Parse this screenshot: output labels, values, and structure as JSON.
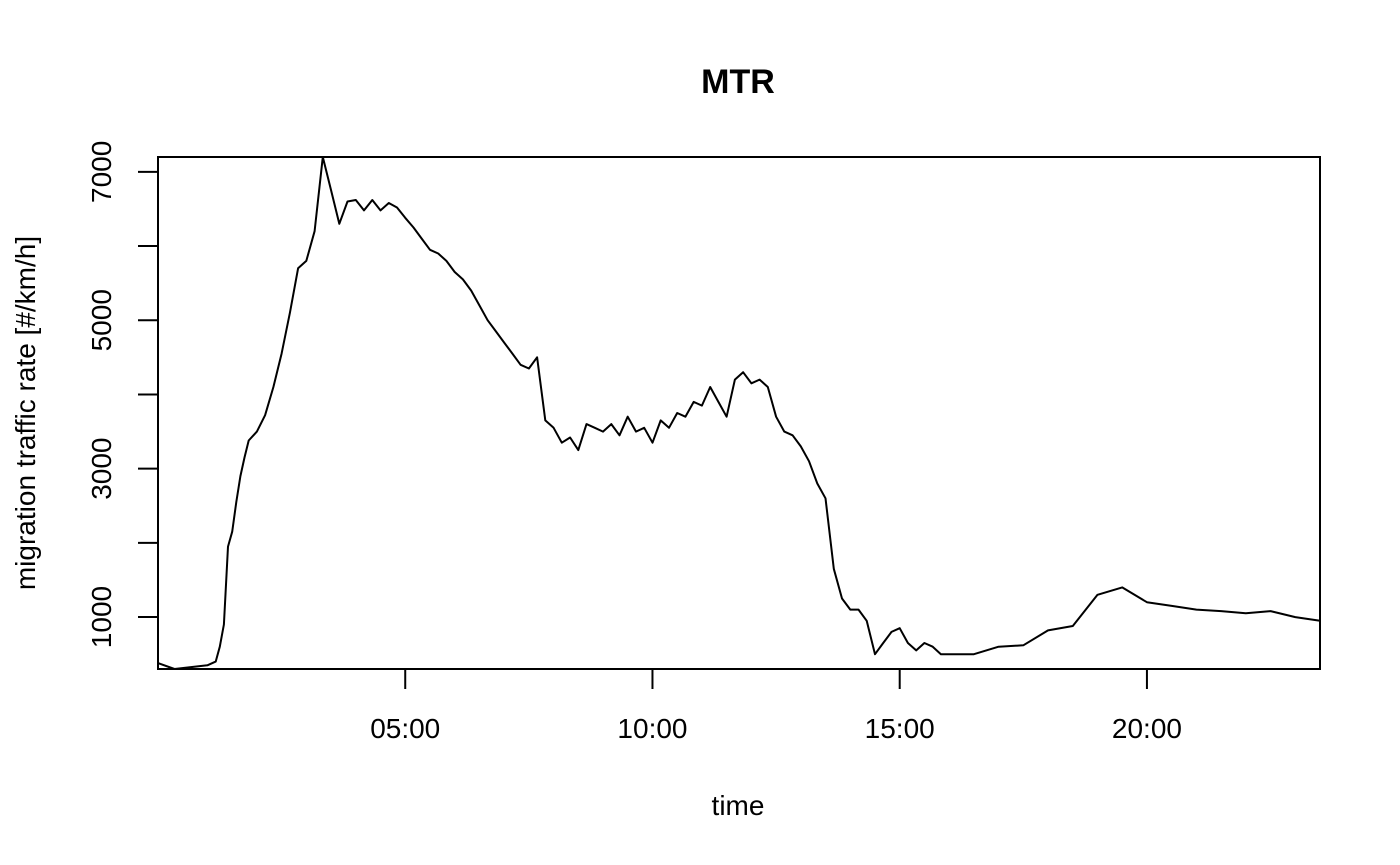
{
  "chart_data": {
    "type": "line",
    "title": "MTR",
    "xlabel": "time",
    "ylabel": "migration traffic rate [#/km/h]",
    "xlim": [
      "00:00",
      "23:30"
    ],
    "ylim": [
      300,
      7200
    ],
    "x_ticks": [
      "05:00",
      "10:00",
      "15:00",
      "20:00"
    ],
    "y_ticks": [
      1000,
      3000,
      5000,
      7000
    ],
    "y_tick_labels": [
      "1000",
      "3000",
      "5000",
      "7000"
    ],
    "y_minor_ticks": [
      2000,
      4000,
      6000
    ],
    "grid": false,
    "line_color": "#000000",
    "series": [
      {
        "x": [
          "00:00",
          "00:20",
          "01:00",
          "01:10",
          "01:15",
          "01:20",
          "01:25",
          "01:30",
          "01:35",
          "01:40",
          "01:45",
          "01:50",
          "02:00",
          "02:10",
          "02:20",
          "02:30",
          "02:40",
          "02:50",
          "03:00",
          "03:10",
          "03:20",
          "03:30",
          "03:40",
          "03:50",
          "04:00",
          "04:10",
          "04:20",
          "04:30",
          "04:40",
          "04:50",
          "05:00",
          "05:10",
          "05:20",
          "05:30",
          "05:40",
          "05:50",
          "06:00",
          "06:10",
          "06:20",
          "06:30",
          "06:40",
          "06:50",
          "07:00",
          "07:10",
          "07:20",
          "07:30",
          "07:40",
          "07:50",
          "08:00",
          "08:10",
          "08:20",
          "08:30",
          "08:40",
          "08:50",
          "09:00",
          "09:10",
          "09:20",
          "09:30",
          "09:40",
          "09:50",
          "10:00",
          "10:10",
          "10:20",
          "10:30",
          "10:40",
          "10:50",
          "11:00",
          "11:10",
          "11:20",
          "11:30",
          "11:40",
          "11:50",
          "12:00",
          "12:10",
          "12:20",
          "12:30",
          "12:40",
          "12:50",
          "13:00",
          "13:10",
          "13:20",
          "13:30",
          "13:40",
          "13:50",
          "14:00",
          "14:10",
          "14:20",
          "14:30",
          "14:40",
          "14:50",
          "15:00",
          "15:10",
          "15:20",
          "15:30",
          "15:40",
          "15:50",
          "16:00",
          "16:30",
          "17:00",
          "17:30",
          "18:00",
          "18:30",
          "19:00",
          "19:30",
          "20:00",
          "20:30",
          "21:00",
          "21:30",
          "22:00",
          "22:30",
          "23:00",
          "23:30"
        ],
        "y": [
          380,
          300,
          350,
          400,
          600,
          900,
          1950,
          2150,
          2550,
          2900,
          3150,
          3380,
          3500,
          3720,
          4100,
          4550,
          5100,
          5700,
          5800,
          6200,
          7200,
          6750,
          6300,
          6600,
          6620,
          6480,
          6620,
          6480,
          6580,
          6520,
          6380,
          6250,
          6100,
          5950,
          5900,
          5800,
          5650,
          5550,
          5400,
          5200,
          5000,
          4850,
          4700,
          4550,
          4400,
          4350,
          4500,
          3650,
          3550,
          3350,
          3420,
          3250,
          3600,
          3550,
          3500,
          3600,
          3450,
          3700,
          3500,
          3550,
          3350,
          3650,
          3550,
          3750,
          3700,
          3900,
          3850,
          4100,
          3900,
          3700,
          4200,
          4300,
          4150,
          4200,
          4100,
          3700,
          3500,
          3450,
          3300,
          3100,
          2800,
          2600,
          1650,
          1250,
          1100,
          1100,
          950,
          500,
          650,
          800,
          850,
          650,
          550,
          650,
          600,
          500,
          500,
          500,
          600,
          620,
          820,
          880,
          1300,
          1400,
          1200,
          1150,
          1100,
          1080,
          1050,
          1080,
          1000,
          950
        ]
      }
    ]
  }
}
